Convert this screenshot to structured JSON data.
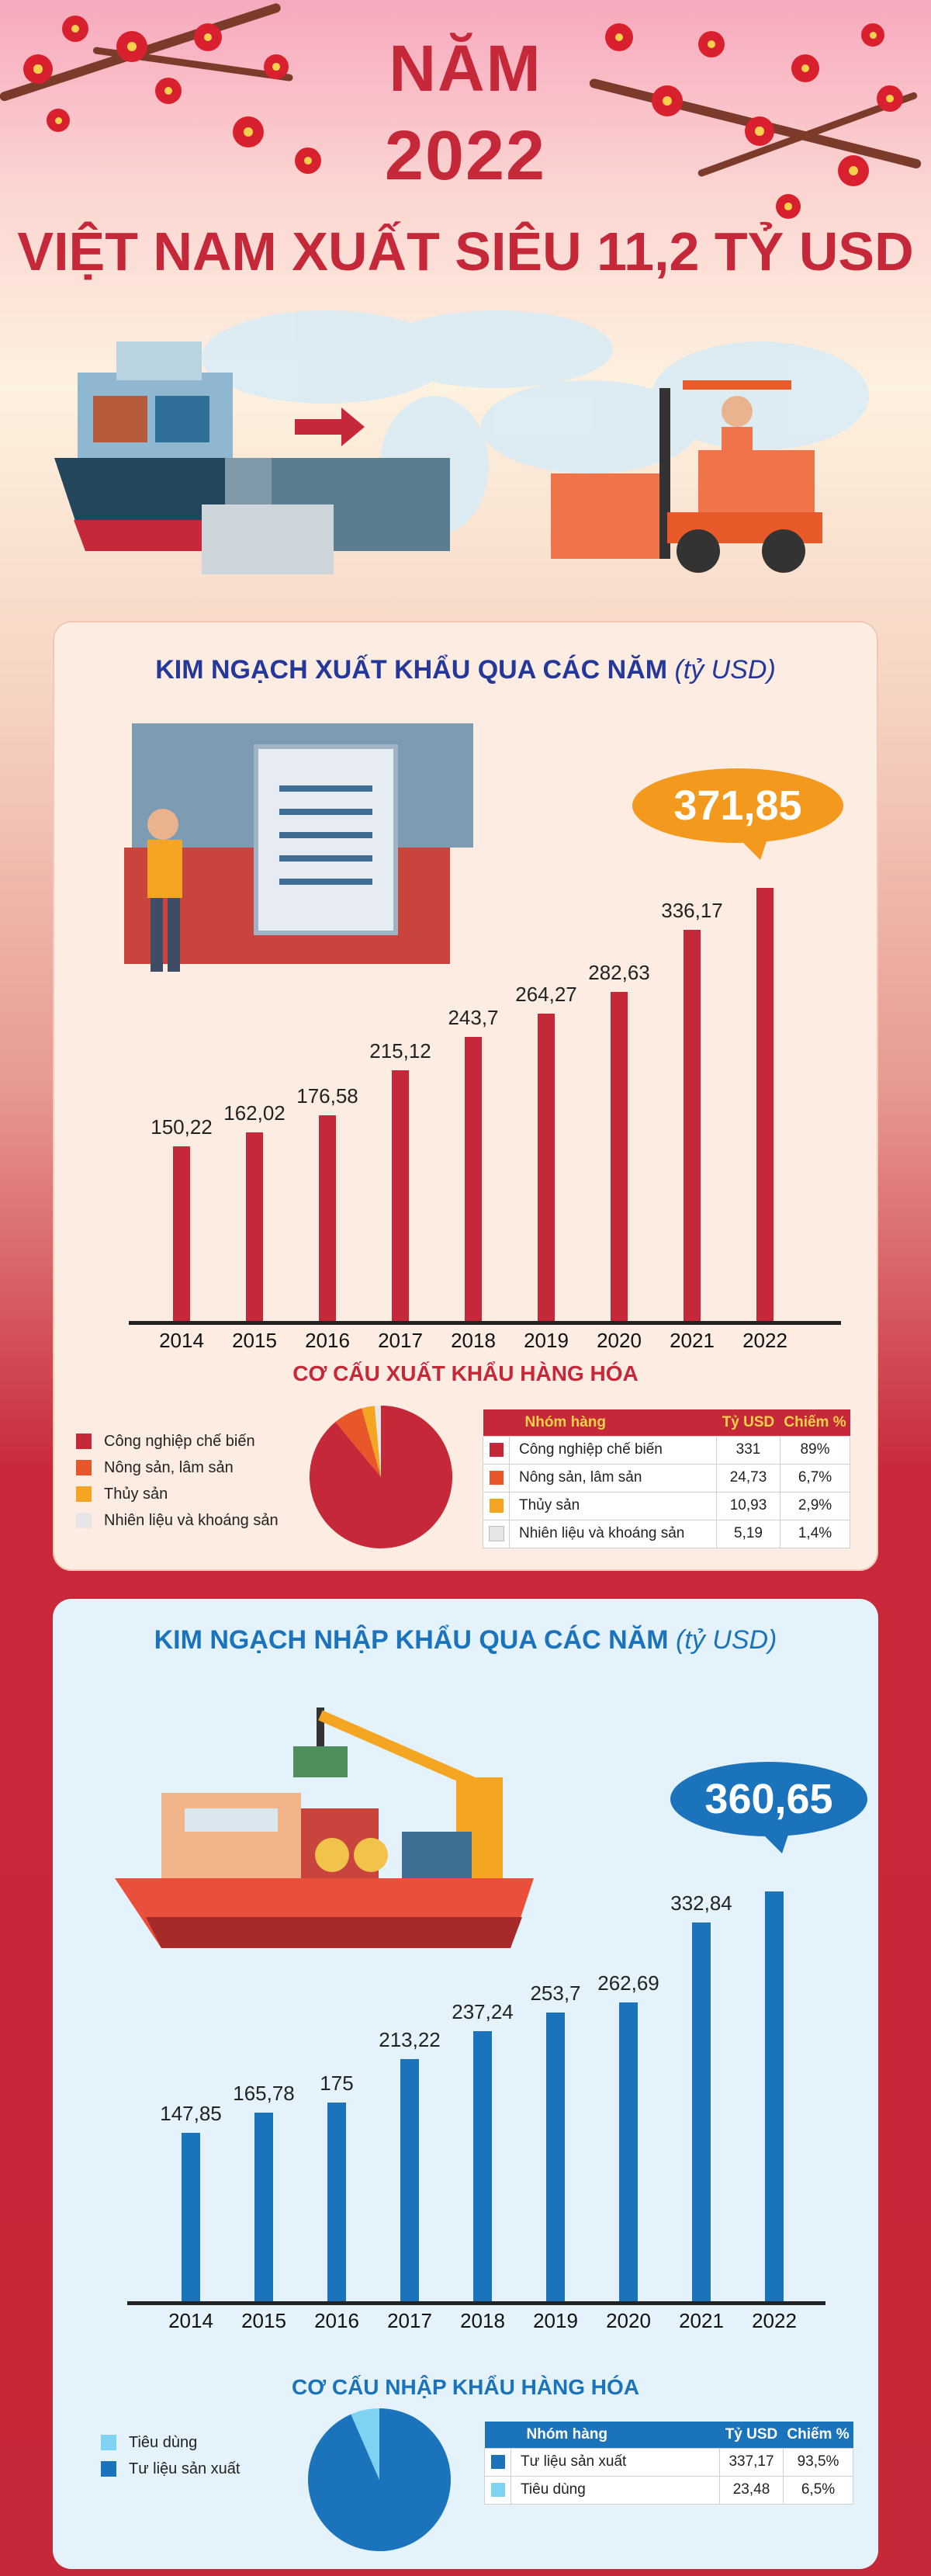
{
  "header": {
    "year_line1": "NĂM",
    "year_line2": "2022",
    "headline": "VIỆT NAM XUẤT SIÊU 11,2 TỶ USD"
  },
  "colors": {
    "export_bar": "#c52838",
    "import_bar": "#1a73bb",
    "export_bubble": "#f39a1e",
    "import_bubble": "#1a73bb",
    "title_red": "#c52838",
    "export_title": "#23389a",
    "import_title": "#1a73bb"
  },
  "export": {
    "title": "KIM NGẠCH XUẤT KHẨU QUA CÁC NĂM",
    "unit": "(tỷ USD)",
    "highlight": "371,85",
    "structure_title": "CƠ CẤU XUẤT KHẨU HÀNG HÓA",
    "table_headers": [
      "Nhóm hàng",
      "Tỷ USD",
      "Chiếm %"
    ]
  },
  "import": {
    "title": "KIM NGẠCH NHẬP KHẨU QUA CÁC NĂM",
    "unit": "(tỷ USD)",
    "highlight": "360,65",
    "structure_title": "CƠ CẤU NHẬP KHẨU HÀNG HÓA",
    "table_headers": [
      "Nhóm hàng",
      "Tỷ USD",
      "Chiếm %"
    ]
  },
  "chart_data": [
    {
      "type": "bar",
      "title": "KIM NGẠCH XUẤT KHẨU QUA CÁC NĂM (tỷ USD)",
      "categories": [
        "2014",
        "2015",
        "2016",
        "2017",
        "2018",
        "2019",
        "2020",
        "2021",
        "2022"
      ],
      "values": [
        150.22,
        162.02,
        176.58,
        215.12,
        243.7,
        264.27,
        282.63,
        336.17,
        371.85
      ],
      "value_labels": [
        "150,22",
        "162,02",
        "176,58",
        "215,12",
        "243,7",
        "264,27",
        "282,63",
        "336,17",
        "371,85"
      ],
      "ylim": [
        0,
        400
      ],
      "grid": false
    },
    {
      "type": "pie",
      "title": "CƠ CẤU XUẤT KHẨU HÀNG HÓA",
      "legend_position": "left",
      "slices": [
        {
          "name": "Công nghiệp chế biến",
          "value": 331,
          "value_label": "331",
          "percent": 89,
          "percent_label": "89%",
          "color": "#c52838"
        },
        {
          "name": "Nông sản, lâm sản",
          "value": 24.73,
          "value_label": "24,73",
          "percent": 6.7,
          "percent_label": "6,7%",
          "color": "#e8572a"
        },
        {
          "name": "Thủy sản",
          "value": 10.93,
          "value_label": "10,93",
          "percent": 2.9,
          "percent_label": "2,9%",
          "color": "#f4a623"
        },
        {
          "name": "Nhiên liệu và khoáng sản",
          "value": 5.19,
          "value_label": "5,19",
          "percent": 1.4,
          "percent_label": "1,4%",
          "color": "#e6e6e6"
        }
      ]
    },
    {
      "type": "bar",
      "title": "KIM NGẠCH NHẬP KHẨU QUA CÁC NĂM (tỷ USD)",
      "categories": [
        "2014",
        "2015",
        "2016",
        "2017",
        "2018",
        "2019",
        "2020",
        "2021",
        "2022"
      ],
      "values": [
        147.85,
        165.78,
        175,
        213.22,
        237.24,
        253.7,
        262.69,
        332.84,
        360.65
      ],
      "value_labels": [
        "147,85",
        "165,78",
        "175",
        "213,22",
        "237,24",
        "253,7",
        "262,69",
        "332,84",
        "360,65"
      ],
      "ylim": [
        0,
        400
      ],
      "grid": false
    },
    {
      "type": "pie",
      "title": "CƠ CẤU NHẬP KHẨU HÀNG HÓA",
      "legend_position": "left",
      "slices": [
        {
          "name": "Tư liệu sản xuất",
          "value": 337.17,
          "value_label": "337,17",
          "percent": 93.5,
          "percent_label": "93,5%",
          "color": "#1a73bb"
        },
        {
          "name": "Tiêu dùng",
          "value": 23.48,
          "value_label": "23,48",
          "percent": 6.5,
          "percent_label": "6,5%",
          "color": "#7fd3f2"
        }
      ],
      "legend_order": [
        "Tiêu dùng",
        "Tư liệu sản xuất"
      ]
    }
  ]
}
